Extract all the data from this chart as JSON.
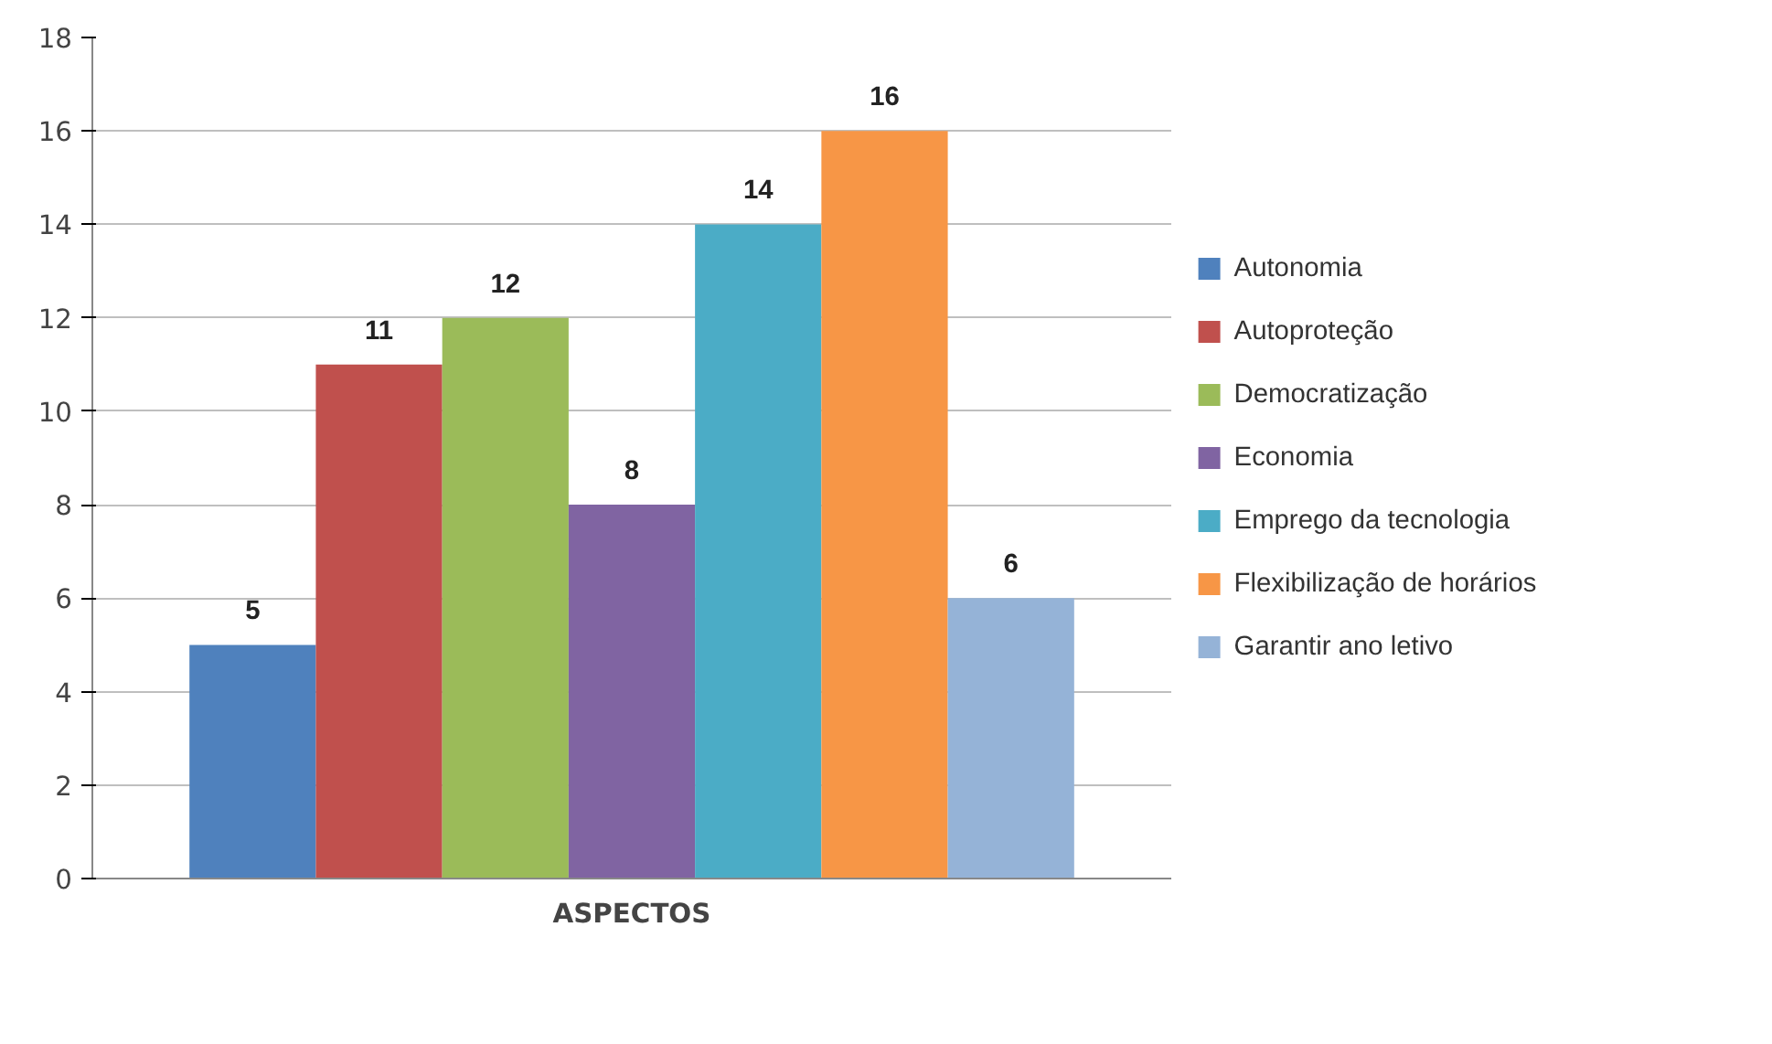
{
  "chart_data": {
    "type": "bar",
    "categories": [
      "ASPECTOS"
    ],
    "series": [
      {
        "name": "Autonomia",
        "color": "#4f81bd",
        "values": [
          5
        ]
      },
      {
        "name": "Autoproteção",
        "color": "#c0504d",
        "values": [
          11
        ]
      },
      {
        "name": "Democratização",
        "color": "#9bbb59",
        "values": [
          12
        ]
      },
      {
        "name": "Economia",
        "color": "#8064a2",
        "values": [
          8
        ]
      },
      {
        "name": "Emprego da tecnologia",
        "color": "#4bacc6",
        "values": [
          14
        ]
      },
      {
        "name": "Flexibilização de horários",
        "color": "#f79646",
        "values": [
          16
        ]
      },
      {
        "name": "Garantir ano letivo",
        "color": "#95b3d7",
        "values": [
          6
        ]
      }
    ],
    "ylim": [
      0,
      18
    ],
    "yticks": [
      0,
      2,
      4,
      6,
      8,
      10,
      12,
      14,
      16,
      18
    ],
    "grid": "y",
    "legend": "right",
    "data_labels": true
  }
}
